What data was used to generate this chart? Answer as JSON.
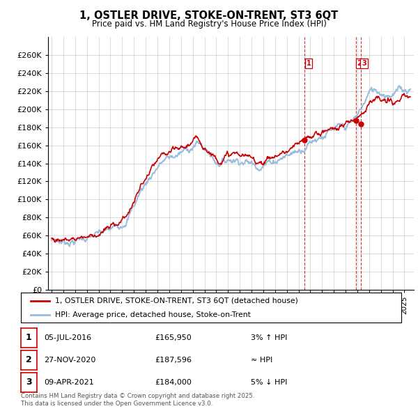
{
  "title": "1, OSTLER DRIVE, STOKE-ON-TRENT, ST3 6QT",
  "subtitle": "Price paid vs. HM Land Registry's House Price Index (HPI)",
  "ylim": [
    0,
    280000
  ],
  "yticks": [
    0,
    20000,
    40000,
    60000,
    80000,
    100000,
    120000,
    140000,
    160000,
    180000,
    200000,
    220000,
    240000,
    260000
  ],
  "line1_color": "#cc0000",
  "line2_color": "#99bbdd",
  "vline_color": "#cc0000",
  "sale_dates": [
    2016.5,
    2020.9,
    2021.3
  ],
  "sale_prices": [
    165950,
    187596,
    184000
  ],
  "sale_labels": [
    "1",
    "2",
    "3"
  ],
  "sale_date_strs": [
    "05-JUL-2016",
    "27-NOV-2020",
    "09-APR-2021"
  ],
  "sale_price_strs": [
    "£165,950",
    "£187,596",
    "£184,000"
  ],
  "sale_rels": [
    "3% ↑ HPI",
    "≈ HPI",
    "5% ↓ HPI"
  ],
  "legend_line1": "1, OSTLER DRIVE, STOKE-ON-TRENT, ST3 6QT (detached house)",
  "legend_line2": "HPI: Average price, detached house, Stoke-on-Trent",
  "footer1": "Contains HM Land Registry data © Crown copyright and database right 2025.",
  "footer2": "This data is licensed under the Open Government Licence v3.0.",
  "background_color": "#ffffff",
  "grid_color": "#cccccc",
  "xlim_left": 1994.7,
  "xlim_right": 2025.8
}
